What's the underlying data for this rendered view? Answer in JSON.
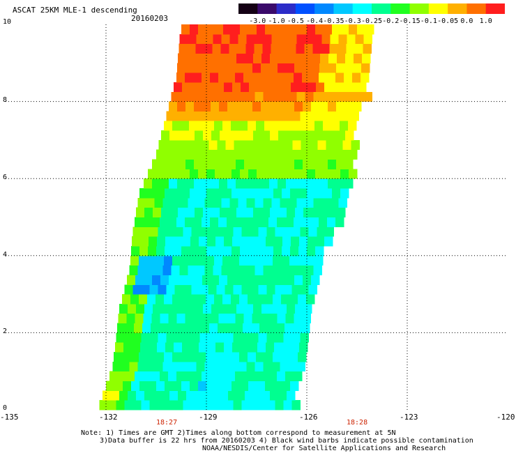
{
  "header": {
    "title": "ASCAT 25KM MLE-1 descending",
    "date": "20160203"
  },
  "colorbar": {
    "labels": [
      "-3.0",
      "-1.0",
      "-0.5",
      "-0.4",
      "-0.35",
      "-0.3",
      "-0.25",
      "-0.2",
      "-0.15",
      "-0.1",
      "-0.05",
      "0.0",
      "1.0"
    ],
    "colors": [
      "#140014",
      "#3a0a6a",
      "#2c2cc8",
      "#0050ff",
      "#0088ff",
      "#00c8ff",
      "#00ffff",
      "#00ff90",
      "#20ff20",
      "#90ff00",
      "#ffff00",
      "#ffb000",
      "#ff7000",
      "#ff1e1e"
    ]
  },
  "map": {
    "lon_range": [
      -135,
      -120
    ],
    "lat_range": [
      0,
      10
    ],
    "x_ticks": [
      "-135",
      "-132",
      "-129",
      "-126",
      "-123",
      "-120"
    ],
    "y_ticks": [
      "0",
      "2",
      "4",
      "6",
      "8",
      "10"
    ],
    "times": [
      "18:27",
      "18:28"
    ]
  },
  "notes": {
    "line1": "Note: 1) Times are GMT 2)Times along bottom correspond to measurement at 5N",
    "line2": "3)Data buffer is 22 hrs from 20160203 4) Black wind barbs indicate possible contamination",
    "line3": "NOAA/NESDIS/Center for Satellite Applications and Research"
  }
}
